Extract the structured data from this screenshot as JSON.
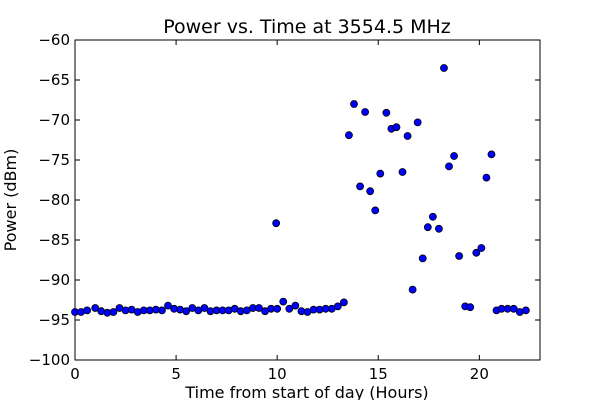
{
  "chart_data": {
    "type": "scatter",
    "title": "Power vs. Time at 3554.5 MHz",
    "xlabel": "Time from start of day (Hours)",
    "ylabel": "Power (dBm)",
    "xlim": [
      0,
      23
    ],
    "ylim": [
      -100,
      -60
    ],
    "x_ticks": [
      0,
      5,
      10,
      15,
      20
    ],
    "x_tick_labels": [
      "0",
      "5",
      "10",
      "15",
      "20"
    ],
    "y_ticks": [
      -100,
      -95,
      -90,
      -85,
      -80,
      -75,
      -70,
      -65,
      -60
    ],
    "y_tick_labels": [
      "−100",
      "−95",
      "−90",
      "−85",
      "−80",
      "−75",
      "−70",
      "−65",
      "−60"
    ],
    "grid": false,
    "marker_color": "#0000ff",
    "points": [
      [
        0.0,
        -94.0
      ],
      [
        0.3,
        -94.0
      ],
      [
        0.6,
        -93.8
      ],
      [
        1.0,
        -93.5
      ],
      [
        1.3,
        -93.9
      ],
      [
        1.6,
        -94.1
      ],
      [
        1.9,
        -94.0
      ],
      [
        2.2,
        -93.5
      ],
      [
        2.5,
        -93.8
      ],
      [
        2.8,
        -93.7
      ],
      [
        3.1,
        -94.0
      ],
      [
        3.4,
        -93.8
      ],
      [
        3.7,
        -93.8
      ],
      [
        4.0,
        -93.7
      ],
      [
        4.3,
        -93.8
      ],
      [
        4.6,
        -93.2
      ],
      [
        4.9,
        -93.6
      ],
      [
        5.2,
        -93.7
      ],
      [
        5.5,
        -93.9
      ],
      [
        5.8,
        -93.5
      ],
      [
        6.1,
        -93.8
      ],
      [
        6.4,
        -93.5
      ],
      [
        6.7,
        -93.9
      ],
      [
        7.0,
        -93.8
      ],
      [
        7.3,
        -93.8
      ],
      [
        7.6,
        -93.8
      ],
      [
        7.9,
        -93.6
      ],
      [
        8.2,
        -93.9
      ],
      [
        8.5,
        -93.8
      ],
      [
        8.8,
        -93.5
      ],
      [
        9.1,
        -93.5
      ],
      [
        9.4,
        -93.9
      ],
      [
        9.7,
        -93.6
      ],
      [
        10.0,
        -93.6
      ],
      [
        9.95,
        -82.9
      ],
      [
        10.3,
        -92.7
      ],
      [
        10.6,
        -93.6
      ],
      [
        10.9,
        -93.2
      ],
      [
        11.2,
        -93.9
      ],
      [
        11.5,
        -94.0
      ],
      [
        11.8,
        -93.7
      ],
      [
        12.1,
        -93.7
      ],
      [
        12.4,
        -93.6
      ],
      [
        12.7,
        -93.6
      ],
      [
        13.0,
        -93.3
      ],
      [
        13.3,
        -92.8
      ],
      [
        13.55,
        -71.9
      ],
      [
        13.8,
        -68.0
      ],
      [
        14.1,
        -78.3
      ],
      [
        14.35,
        -69.0
      ],
      [
        14.6,
        -78.9
      ],
      [
        14.85,
        -81.3
      ],
      [
        15.1,
        -76.7
      ],
      [
        15.4,
        -69.1
      ],
      [
        15.65,
        -71.1
      ],
      [
        15.9,
        -70.9
      ],
      [
        16.2,
        -76.5
      ],
      [
        16.45,
        -72.0
      ],
      [
        16.7,
        -91.2
      ],
      [
        16.95,
        -70.3
      ],
      [
        17.2,
        -87.3
      ],
      [
        17.45,
        -83.4
      ],
      [
        17.7,
        -82.1
      ],
      [
        18.0,
        -83.6
      ],
      [
        18.25,
        -63.5
      ],
      [
        18.5,
        -75.8
      ],
      [
        18.75,
        -74.5
      ],
      [
        19.0,
        -87.0
      ],
      [
        19.3,
        -93.3
      ],
      [
        19.55,
        -93.4
      ],
      [
        19.85,
        -86.6
      ],
      [
        20.1,
        -86.0
      ],
      [
        20.35,
        -77.2
      ],
      [
        20.6,
        -74.3
      ],
      [
        20.85,
        -93.8
      ],
      [
        21.1,
        -93.6
      ],
      [
        21.4,
        -93.6
      ],
      [
        21.7,
        -93.6
      ],
      [
        22.0,
        -94.0
      ],
      [
        22.3,
        -93.8
      ]
    ]
  }
}
